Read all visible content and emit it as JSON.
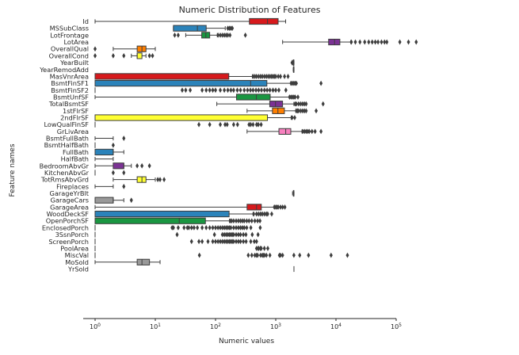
{
  "chart_data": {
    "type": "box",
    "orientation": "horizontal",
    "title": "Numeric Distribution of Features",
    "xlabel": "Numeric values",
    "ylabel": "Feature names",
    "xscale": "log",
    "xlim": [
      1,
      100000
    ],
    "xticks": [
      {
        "value": 1,
        "base": "10",
        "exp": "0"
      },
      {
        "value": 10,
        "base": "10",
        "exp": "1"
      },
      {
        "value": 100,
        "base": "10",
        "exp": "2"
      },
      {
        "value": 1000,
        "base": "10",
        "exp": "3"
      },
      {
        "value": 10000,
        "base": "10",
        "exp": "4"
      },
      {
        "value": 100000,
        "base": "10",
        "exp": "5"
      }
    ],
    "grid": false,
    "legend": "none",
    "features": [
      {
        "name": "Id",
        "color": "#d7191c",
        "wlo": 1,
        "q1": 365,
        "med": 730,
        "q3": 1095,
        "whi": 1460,
        "out": []
      },
      {
        "name": "MSSubClass",
        "color": "#2b83ba",
        "wlo": 20,
        "q1": 20,
        "med": 50,
        "q3": 70,
        "whi": 145,
        "out": [
          160,
          170,
          180,
          190
        ]
      },
      {
        "name": "LotFrontage",
        "color": "#1a9641",
        "wlo": 32,
        "q1": 59,
        "med": 69,
        "q3": 80,
        "whi": 107,
        "out": [
          21,
          24,
          110,
          120,
          130,
          140,
          150,
          160,
          174,
          313
        ]
      },
      {
        "name": "LotArea",
        "color": "#7b3294",
        "wlo": 1300,
        "q1": 7550,
        "med": 9480,
        "q3": 11600,
        "whi": 17600,
        "out": [
          18000,
          21000,
          25000,
          30000,
          35000,
          40000,
          45000,
          50000,
          57000,
          64000,
          70000,
          115000,
          160000,
          215000
        ]
      },
      {
        "name": "OverallQual",
        "color": "#ff7f00",
        "wlo": 2,
        "q1": 5,
        "med": 6,
        "q3": 7,
        "whi": 10,
        "out": [
          1
        ]
      },
      {
        "name": "OverallCond",
        "color": "#ffff33",
        "wlo": 4,
        "q1": 5,
        "med": 5,
        "q3": 6,
        "whi": 7,
        "out": [
          1,
          2,
          3,
          8,
          9
        ]
      },
      {
        "name": "YearBuilt",
        "color": "#f781bf",
        "wlo": 1885,
        "q1": 1954,
        "med": 1973,
        "q3": 2000,
        "whi": 2010,
        "out": [
          1872,
          1875,
          1880
        ]
      },
      {
        "name": "YearRemodAdd",
        "color": "#999999",
        "wlo": 1950,
        "q1": 1967,
        "med": 1994,
        "q3": 2004,
        "whi": 2010,
        "out": []
      },
      {
        "name": "MasVnrArea",
        "color": "#d7191c",
        "wlo": 1,
        "q1": 1,
        "med": 1,
        "q3": 166,
        "whi": 410,
        "out": [
          420,
          450,
          480,
          520,
          560,
          600,
          650,
          700,
          750,
          800,
          850,
          900,
          950,
          1000,
          1100,
          1200,
          1400,
          1600
        ]
      },
      {
        "name": "BsmtFinSF1",
        "color": "#2b83ba",
        "wlo": 1,
        "q1": 1,
        "med": 383,
        "q3": 712,
        "whi": 1770,
        "out": [
          1800,
          1900,
          2000,
          2100,
          2200,
          5644
        ]
      },
      {
        "name": "BsmtFinSF2",
        "color": "#1a9641",
        "wlo": 1,
        "q1": 1,
        "med": 1,
        "q3": 1,
        "whi": 1,
        "out": [
          28,
          32,
          38,
          60,
          70,
          80,
          90,
          100,
          120,
          140,
          160,
          180,
          200,
          230,
          260,
          300,
          340,
          380,
          420,
          470,
          520,
          580,
          650,
          720,
          800,
          900,
          1000,
          1127,
          1474
        ]
      },
      {
        "name": "BsmtUnfSF",
        "color": "#1a9641",
        "wlo": 1,
        "q1": 223,
        "med": 477,
        "q3": 808,
        "whi": 1685,
        "out": [
          1700,
          1800,
          1900,
          2000,
          2100,
          2336
        ]
      },
      {
        "name": "TotalBsmtSF",
        "color": "#7b3294",
        "wlo": 105,
        "q1": 795,
        "med": 991,
        "q3": 1298,
        "whi": 2000,
        "out": [
          2100,
          2200,
          2400,
          2600,
          2800,
          3000,
          3200,
          6110
        ]
      },
      {
        "name": "1stFlrSF",
        "color": "#ff7f00",
        "wlo": 334,
        "q1": 882,
        "med": 1087,
        "q3": 1391,
        "whi": 2150,
        "out": [
          2200,
          2300,
          2400,
          2600,
          2800,
          3000,
          3200,
          4692
        ]
      },
      {
        "name": "2ndFlrSF",
        "color": "#ffff33",
        "wlo": 1,
        "q1": 1,
        "med": 1,
        "q3": 728,
        "whi": 1800,
        "out": [
          1872,
          2065
        ]
      },
      {
        "name": "LowQualFinSF",
        "color": "#f781bf",
        "wlo": 1,
        "q1": 1,
        "med": 1,
        "q3": 1,
        "whi": 1,
        "out": [
          53,
          80,
          120,
          144,
          156,
          200,
          232,
          360,
          384,
          420,
          481,
          514,
          572
        ]
      },
      {
        "name": "GrLivArea",
        "color": "#f781bf",
        "wlo": 334,
        "q1": 1130,
        "med": 1464,
        "q3": 1777,
        "whi": 2730,
        "out": [
          2800,
          3000,
          3200,
          3400,
          3600,
          4000,
          4500,
          5642
        ]
      },
      {
        "name": "BsmtFullBath",
        "color": "#999999",
        "wlo": 1,
        "q1": 1,
        "med": 1,
        "q3": 1,
        "whi": 2,
        "out": [
          3
        ]
      },
      {
        "name": "BsmtHalfBath",
        "color": "#999999",
        "wlo": 1,
        "q1": 1,
        "med": 1,
        "q3": 1,
        "whi": 1,
        "out": [
          2
        ]
      },
      {
        "name": "FullBath",
        "color": "#2b83ba",
        "wlo": 1,
        "q1": 1,
        "med": 2,
        "q3": 2,
        "whi": 3,
        "out": []
      },
      {
        "name": "HalfBath",
        "color": "#1a9641",
        "wlo": 1,
        "q1": 1,
        "med": 1,
        "q3": 1,
        "whi": 2,
        "out": []
      },
      {
        "name": "BedroomAbvGr",
        "color": "#7b3294",
        "wlo": 1,
        "q1": 2,
        "med": 3,
        "q3": 3,
        "whi": 4,
        "out": [
          5,
          6,
          8
        ]
      },
      {
        "name": "KitchenAbvGr",
        "color": "#ff7f00",
        "wlo": 1,
        "q1": 1,
        "med": 1,
        "q3": 1,
        "whi": 1,
        "out": [
          2,
          3
        ]
      },
      {
        "name": "TotRmsAbvGrd",
        "color": "#ffff33",
        "wlo": 2,
        "q1": 5,
        "med": 6,
        "q3": 7,
        "whi": 10,
        "out": [
          11,
          12,
          14
        ]
      },
      {
        "name": "Fireplaces",
        "color": "#f781bf",
        "wlo": 1,
        "q1": 1,
        "med": 1,
        "q3": 1,
        "whi": 2,
        "out": [
          3
        ]
      },
      {
        "name": "GarageYrBlt",
        "color": "#f781bf",
        "wlo": 1900,
        "q1": 1961,
        "med": 1980,
        "q3": 2002,
        "whi": 2010,
        "out": []
      },
      {
        "name": "GarageCars",
        "color": "#999999",
        "wlo": 1,
        "q1": 1,
        "med": 2,
        "q3": 2,
        "whi": 3,
        "out": [
          4
        ]
      },
      {
        "name": "GarageArea",
        "color": "#d7191c",
        "wlo": 1,
        "q1": 334,
        "med": 480,
        "q3": 576,
        "whi": 938,
        "out": [
          950,
          1000,
          1050,
          1100,
          1200,
          1300,
          1418
        ]
      },
      {
        "name": "WoodDeckSF",
        "color": "#2b83ba",
        "wlo": 1,
        "q1": 1,
        "med": 1,
        "q3": 168,
        "whi": 420,
        "out": [
          430,
          480,
          520,
          560,
          600,
          650,
          700,
          736,
          857
        ]
      },
      {
        "name": "OpenPorchSF",
        "color": "#1a9641",
        "wlo": 1,
        "q1": 1,
        "med": 25,
        "q3": 68,
        "whi": 170,
        "out": [
          175,
          185,
          200,
          220,
          240,
          260,
          280,
          300,
          330,
          360,
          400,
          450,
          500,
          547
        ]
      },
      {
        "name": "EnclosedPorch",
        "color": "#7b3294",
        "wlo": 1,
        "q1": 1,
        "med": 1,
        "q3": 1,
        "whi": 1,
        "out": [
          19,
          20,
          24,
          30,
          34,
          36,
          40,
          44,
          50,
          60,
          70,
          80,
          90,
          100,
          110,
          120,
          130,
          140,
          150,
          160,
          170,
          180,
          200,
          220,
          240,
          260,
          280,
          300,
          330,
          386,
          552
        ]
      },
      {
        "name": "3SsnPorch",
        "color": "#ff7f00",
        "wlo": 1,
        "q1": 1,
        "med": 1,
        "q3": 1,
        "whi": 1,
        "out": [
          23,
          96,
          130,
          140,
          150,
          160,
          170,
          180,
          190,
          200,
          220,
          240,
          260,
          290,
          320,
          407,
          508
        ]
      },
      {
        "name": "ScreenPorch",
        "color": "#ffff33",
        "wlo": 1,
        "q1": 1,
        "med": 1,
        "q3": 1,
        "whi": 1,
        "out": [
          40,
          53,
          60,
          75,
          90,
          100,
          110,
          120,
          130,
          140,
          150,
          160,
          170,
          180,
          190,
          200,
          220,
          240,
          260,
          290,
          322,
          385,
          440,
          480
        ]
      },
      {
        "name": "PoolArea",
        "color": "#f781bf",
        "wlo": 1,
        "q1": 1,
        "med": 1,
        "q3": 1,
        "whi": 1,
        "out": [
          480,
          512,
          519,
          555,
          576,
          648,
          738
        ]
      },
      {
        "name": "MiscVal",
        "color": "#999999",
        "wlo": 1,
        "q1": 1,
        "med": 1,
        "q3": 1,
        "whi": 1,
        "out": [
          54,
          350,
          400,
          450,
          480,
          500,
          560,
          600,
          620,
          650,
          700,
          800,
          1150,
          1200,
          1300,
          2000,
          2500,
          3500,
          8300,
          15500
        ]
      },
      {
        "name": "MoSold",
        "color": "#999999",
        "wlo": 1,
        "q1": 5,
        "med": 6,
        "q3": 8,
        "whi": 12,
        "out": []
      },
      {
        "name": "YrSold",
        "color": "#d7191c",
        "wlo": 2006,
        "q1": 2007,
        "med": 2008,
        "q3": 2009,
        "whi": 2010,
        "out": []
      }
    ]
  }
}
